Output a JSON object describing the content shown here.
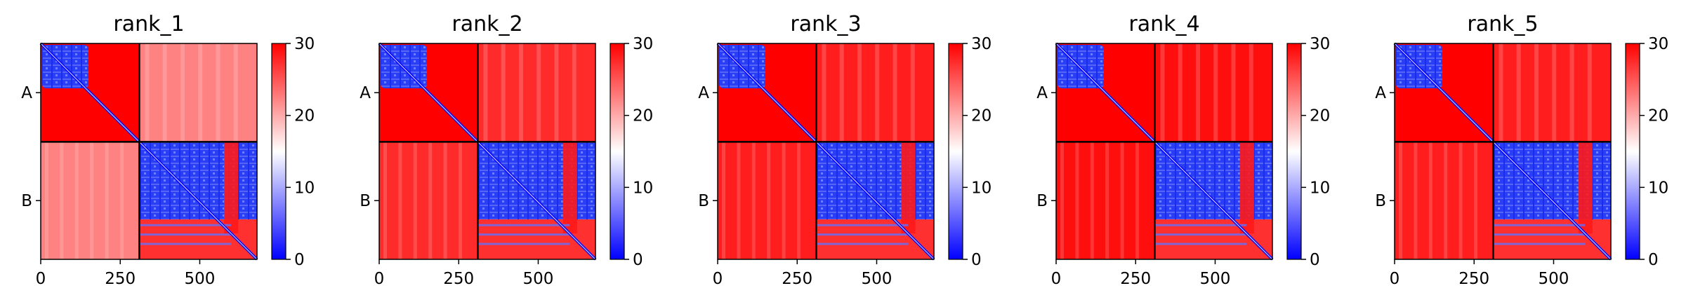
{
  "chart_data": {
    "type": "heatmap",
    "colormap": {
      "low": "#0000ff",
      "mid": "#ffffff",
      "high": "#ff0000"
    },
    "value_range": [
      0,
      30
    ],
    "colorbar_ticks": [
      "0",
      "10",
      "20",
      "30"
    ],
    "chain_labels": [
      "A",
      "B"
    ],
    "chain_boundary": 310,
    "total_length": 680,
    "x_ticks": [
      {
        "label": "0",
        "value": 0
      },
      {
        "label": "250",
        "value": 250
      },
      {
        "label": "500",
        "value": 500
      }
    ],
    "panels": [
      {
        "title": "rank_1",
        "a_domain_end": 150,
        "inter_level": 21,
        "b_red_band": [
          0.3,
          0.43
        ]
      },
      {
        "title": "rank_2",
        "a_domain_end": 150,
        "inter_level": 27,
        "b_red_band": [
          0.32,
          0.4
        ]
      },
      {
        "title": "rank_3",
        "a_domain_end": 150,
        "inter_level": 28,
        "b_red_band": [
          0.31,
          0.42
        ]
      },
      {
        "title": "rank_4",
        "a_domain_end": 150,
        "inter_level": 29,
        "b_red_band": [
          0.32,
          0.42
        ]
      },
      {
        "title": "rank_5",
        "a_domain_end": 150,
        "inter_level": 28,
        "b_red_band": [
          0.32,
          0.42
        ]
      }
    ]
  }
}
